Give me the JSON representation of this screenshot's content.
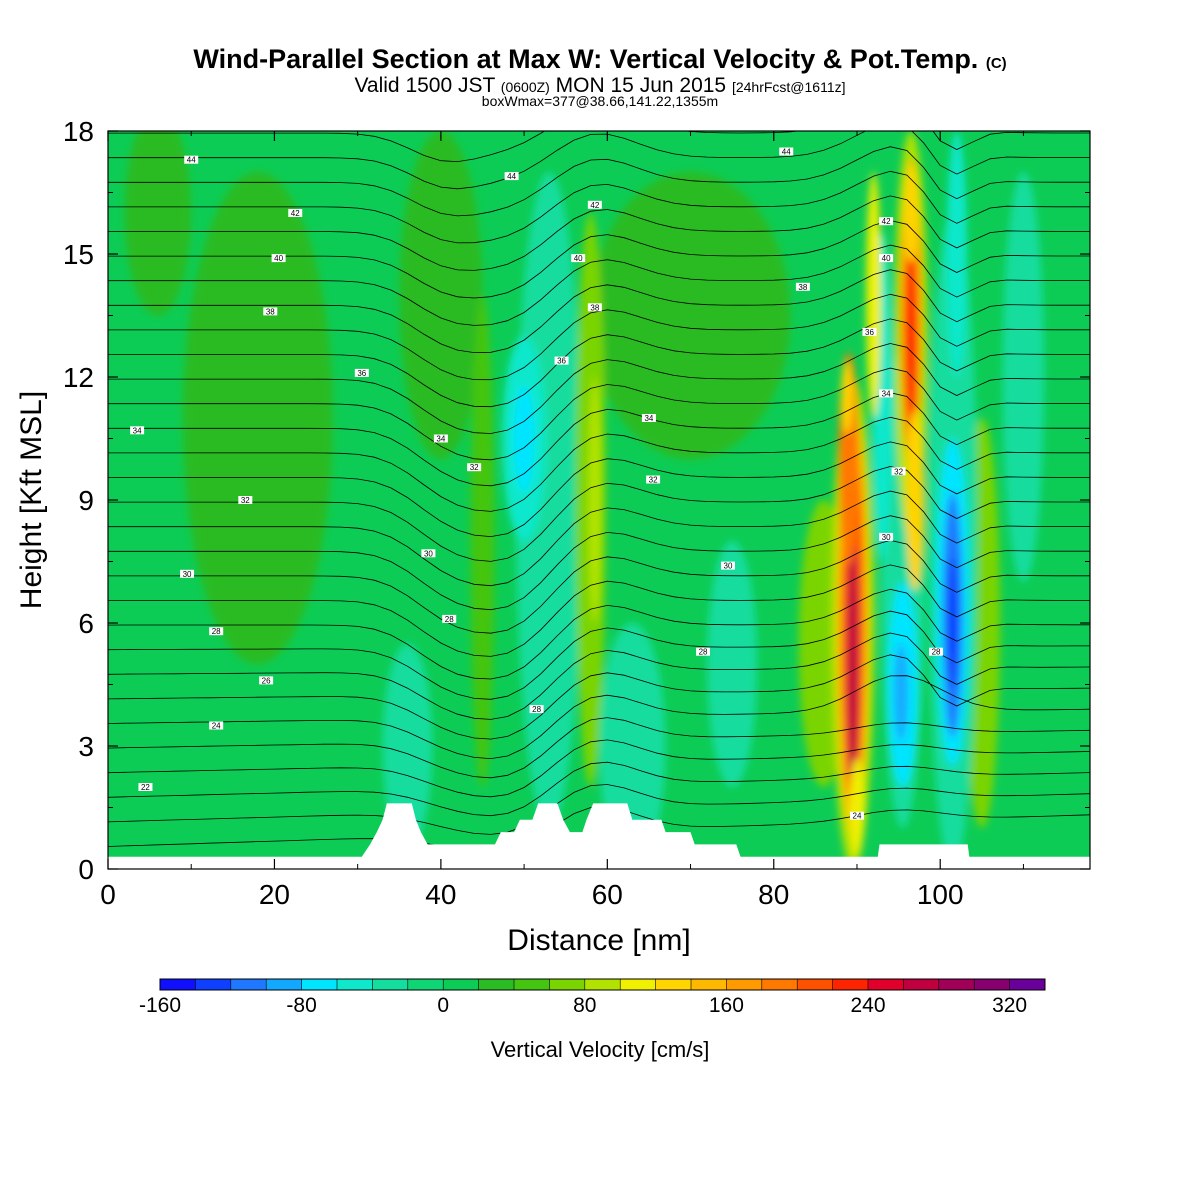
{
  "title": {
    "main": "Wind-Parallel Section at Max W: Vertical Velocity & Pot.Temp.",
    "main_suffix": "(C)",
    "valid_prefix": "Valid 1500 JST",
    "valid_z": "(0600Z)",
    "valid_date": "MON 15 Jun 2015",
    "valid_fcst": "[24hrFcst@1611z]",
    "boxwmax": "boxWmax=377@38.66,141.22,1355m"
  },
  "colors": {
    "plot_bg": "#0dcc55",
    "terrain": "#ffffff",
    "contour": "#000000",
    "scale": [
      "#1010ff",
      "#1040ff",
      "#1f78ff",
      "#12a8ff",
      "#00e5ff",
      "#10e8cc",
      "#15dd9e",
      "#10d574",
      "#0dcc55",
      "#2bbb22",
      "#44c511",
      "#7ad400",
      "#b2e300",
      "#f0f000",
      "#ffd400",
      "#ffb800",
      "#ff9a00",
      "#ff7800",
      "#ff5200",
      "#ff2400",
      "#e0002a",
      "#c0003e",
      "#a00058",
      "#860070",
      "#6a009a"
    ]
  },
  "chart_data": {
    "type": "heatmap",
    "xlabel": "Distance [nm]",
    "ylabel": "Height [Kft MSL]",
    "xlim": [
      0,
      118
    ],
    "ylim": [
      0,
      18
    ],
    "xticks": [
      0,
      20,
      40,
      60,
      80,
      100
    ],
    "yticks": [
      0,
      3,
      6,
      9,
      12,
      15,
      18
    ],
    "colorbar": {
      "label": "Vertical Velocity [cm/s]",
      "range": [
        -160,
        360
      ],
      "step": 20,
      "ticks": [
        -160,
        -80,
        0,
        80,
        160,
        240,
        320
      ]
    },
    "boxWmax": 377,
    "updrafts": [
      {
        "x": 89.5,
        "y_range": [
          0.5,
          12
        ],
        "w_max": 360
      },
      {
        "x": 96.5,
        "y_range": [
          7,
          17.5
        ],
        "w_max": 300
      }
    ],
    "downdrafts": [
      {
        "x": 101.5,
        "y_range": [
          3.5,
          9
        ],
        "w_min": -150
      },
      {
        "x": 95.5,
        "y_range": [
          3,
          5.5
        ],
        "w_min": -100
      },
      {
        "x": 50,
        "y_range": [
          9,
          12
        ],
        "w_min": -80
      }
    ],
    "terrain_profile": [
      [
        0,
        0.3
      ],
      [
        30.5,
        0.3
      ],
      [
        31.5,
        0.6
      ],
      [
        32.3,
        0.9
      ],
      [
        33,
        1.2
      ],
      [
        33.5,
        1.6
      ],
      [
        36.5,
        1.6
      ],
      [
        37,
        1.2
      ],
      [
        37.6,
        0.9
      ],
      [
        38.4,
        0.6
      ],
      [
        46.5,
        0.6
      ],
      [
        47.2,
        0.9
      ],
      [
        48.8,
        0.9
      ],
      [
        49.5,
        1.2
      ],
      [
        51,
        1.2
      ],
      [
        51.7,
        1.6
      ],
      [
        54,
        1.6
      ],
      [
        54.7,
        1.2
      ],
      [
        55.5,
        0.9
      ],
      [
        57,
        0.9
      ],
      [
        57.5,
        1.2
      ],
      [
        58.3,
        1.6
      ],
      [
        62.4,
        1.6
      ],
      [
        63,
        1.2
      ],
      [
        66.5,
        1.2
      ],
      [
        67,
        0.9
      ],
      [
        70,
        0.9
      ],
      [
        70.5,
        0.6
      ],
      [
        75.5,
        0.6
      ],
      [
        76,
        0.3
      ],
      [
        92.5,
        0.3
      ],
      [
        92.7,
        0.6
      ],
      [
        103.3,
        0.6
      ],
      [
        103.5,
        0.3
      ],
      [
        118,
        0.3
      ]
    ],
    "theta_labels": [
      {
        "x": 10,
        "y": 17.3,
        "text": "44"
      },
      {
        "x": 22.5,
        "y": 16.0,
        "text": "42"
      },
      {
        "x": 20.5,
        "y": 14.9,
        "text": "40"
      },
      {
        "x": 19.5,
        "y": 13.6,
        "text": "38"
      },
      {
        "x": 30.5,
        "y": 12.1,
        "text": "36"
      },
      {
        "x": 3.5,
        "y": 10.7,
        "text": "34"
      },
      {
        "x": 40,
        "y": 10.5,
        "text": "34"
      },
      {
        "x": 16.5,
        "y": 9.0,
        "text": "32"
      },
      {
        "x": 44,
        "y": 9.8,
        "text": "32"
      },
      {
        "x": 9.5,
        "y": 7.2,
        "text": "30"
      },
      {
        "x": 38.5,
        "y": 7.7,
        "text": "30"
      },
      {
        "x": 13,
        "y": 5.8,
        "text": "28"
      },
      {
        "x": 41,
        "y": 6.1,
        "text": "28"
      },
      {
        "x": 19,
        "y": 4.6,
        "text": "26"
      },
      {
        "x": 13,
        "y": 3.5,
        "text": "24"
      },
      {
        "x": 51.5,
        "y": 3.9,
        "text": "28"
      },
      {
        "x": 4.5,
        "y": 2.0,
        "text": "22"
      },
      {
        "x": 48.5,
        "y": 16.9,
        "text": "44"
      },
      {
        "x": 58.5,
        "y": 16.2,
        "text": "42"
      },
      {
        "x": 56.5,
        "y": 14.9,
        "text": "40"
      },
      {
        "x": 58.5,
        "y": 13.7,
        "text": "38"
      },
      {
        "x": 54.5,
        "y": 12.4,
        "text": "36"
      },
      {
        "x": 65,
        "y": 11.0,
        "text": "34"
      },
      {
        "x": 65.5,
        "y": 9.5,
        "text": "32"
      },
      {
        "x": 74.5,
        "y": 7.4,
        "text": "30"
      },
      {
        "x": 71.5,
        "y": 5.3,
        "text": "28"
      },
      {
        "x": 81.5,
        "y": 17.5,
        "text": "44"
      },
      {
        "x": 83.5,
        "y": 14.2,
        "text": "38"
      },
      {
        "x": 93.5,
        "y": 15.8,
        "text": "42"
      },
      {
        "x": 93.5,
        "y": 14.9,
        "text": "40"
      },
      {
        "x": 91.5,
        "y": 13.1,
        "text": "36"
      },
      {
        "x": 93.5,
        "y": 11.6,
        "text": "34"
      },
      {
        "x": 95,
        "y": 9.7,
        "text": "32"
      },
      {
        "x": 93.5,
        "y": 8.1,
        "text": "30"
      },
      {
        "x": 99.5,
        "y": 5.3,
        "text": "28"
      },
      {
        "x": 90,
        "y": 1.3,
        "text": "24"
      }
    ]
  }
}
